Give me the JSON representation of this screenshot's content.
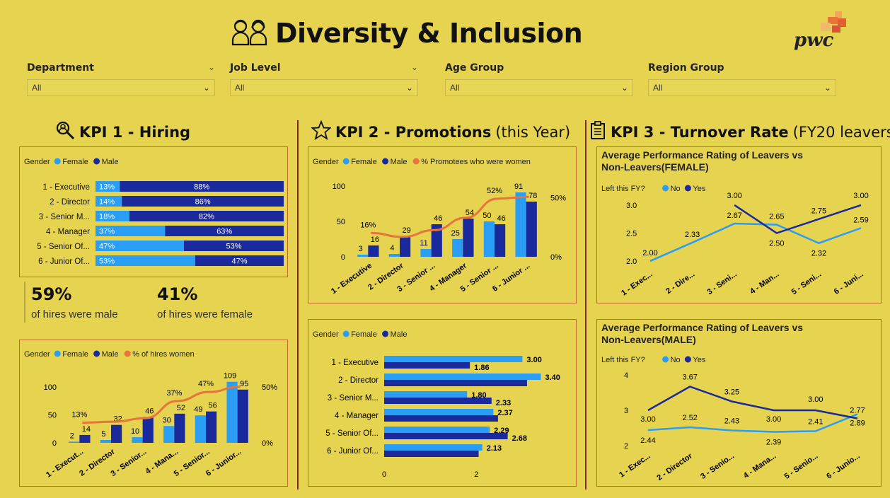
{
  "header": {
    "title": "Diversity & Inclusion",
    "logo_text": "pwc",
    "colors": {
      "background": "#e6d350",
      "female": "#2a9df4",
      "male": "#1a2a9c",
      "line": "#e8743b",
      "border": "#c26a2a"
    }
  },
  "filters": [
    {
      "label": "Department",
      "value": "All"
    },
    {
      "label": "Job Level",
      "value": "All"
    },
    {
      "label": "Age Group",
      "value": "All"
    },
    {
      "label": "Region Group",
      "value": "All"
    }
  ],
  "kpi1": {
    "title": "KPI 1 - Hiring",
    "stat_male_value": "59%",
    "stat_male_label": "of hires were male",
    "stat_female_value": "41%",
    "stat_female_label": "of hires were female"
  },
  "kpi2": {
    "title": "KPI 2 - Promotions",
    "title_suffix": "(this Year)"
  },
  "kpi3": {
    "title": "KPI 3 - Turnover Rate",
    "title_suffix": "(FY20 leavers)"
  },
  "chart_data": [
    {
      "id": "hiring_split",
      "type": "bar",
      "orientation": "horizontal-stacked-100",
      "legend_title": "Gender",
      "legend": [
        "Female",
        "Male"
      ],
      "categories": [
        "1 - Executive",
        "2 - Director",
        "3 - Senior M...",
        "4 - Manager",
        "5 - Senior Of...",
        "6 - Junior Of..."
      ],
      "series": [
        {
          "name": "Female",
          "values": [
            13,
            14,
            18,
            37,
            47,
            53
          ],
          "labels": [
            "13%",
            "14%",
            "18%",
            "37%",
            "47%",
            "53%"
          ]
        },
        {
          "name": "Male",
          "values": [
            88,
            86,
            82,
            63,
            53,
            47
          ],
          "labels": [
            "88%",
            "86%",
            "82%",
            "63%",
            "53%",
            "47%"
          ]
        }
      ]
    },
    {
      "id": "hiring_counts",
      "type": "bar",
      "orientation": "vertical-clustered-with-line",
      "legend_title": "Gender",
      "legend": [
        "Female",
        "Male",
        "% of hires women"
      ],
      "categories": [
        "1 - Execut...",
        "2 - Director",
        "3 - Senior...",
        "4 - Mana...",
        "5 - Senior...",
        "6 - Junior..."
      ],
      "series": [
        {
          "name": "Female",
          "values": [
            2,
            5,
            10,
            30,
            49,
            109
          ]
        },
        {
          "name": "Male",
          "values": [
            14,
            32,
            46,
            52,
            56,
            95
          ]
        }
      ],
      "line": {
        "name": "% of hires women",
        "values": [
          13,
          14,
          18,
          37,
          47,
          53
        ],
        "labels": [
          "13%",
          "",
          "",
          "37%",
          "47%",
          ""
        ]
      },
      "yticks": [
        "0",
        "50",
        "100"
      ],
      "ylim": [
        0,
        120
      ],
      "y2ticks": [
        "0%",
        "50%"
      ],
      "y2lim": [
        0,
        60
      ]
    },
    {
      "id": "promotions_counts",
      "type": "bar",
      "orientation": "vertical-clustered-with-line",
      "legend_title": "Gender",
      "legend": [
        "Female",
        "Male",
        "% Promotees who were women"
      ],
      "categories": [
        "1 - Executive",
        "2 - Director",
        "3 - Senior ...",
        "4 - Manager",
        "5 - Senior ...",
        "6 - Junior ..."
      ],
      "series": [
        {
          "name": "Female",
          "values": [
            3,
            4,
            11,
            25,
            50,
            91
          ]
        },
        {
          "name": "Male",
          "values": [
            16,
            29,
            46,
            54,
            46,
            78
          ]
        }
      ],
      "line": {
        "name": "% Promotees who were women",
        "values": [
          16,
          12,
          19,
          32,
          52,
          54
        ],
        "labels": [
          "16%",
          "",
          "",
          "",
          "52%",
          ""
        ]
      },
      "yticks": [
        "0",
        "50",
        "100"
      ],
      "ylim": [
        0,
        100
      ],
      "y2ticks": [
        "0%",
        "50%"
      ],
      "y2lim": [
        0,
        60
      ]
    },
    {
      "id": "promotions_rating",
      "type": "bar",
      "orientation": "horizontal-clustered",
      "legend_title": "Gender",
      "legend": [
        "Female",
        "Male"
      ],
      "categories": [
        "1 - Executive",
        "2 - Director",
        "3 - Senior M...",
        "4 - Manager",
        "5 - Senior Of...",
        "6 - Junior Of..."
      ],
      "series": [
        {
          "name": "Female",
          "values": [
            3.0,
            3.4,
            1.8,
            2.37,
            2.29,
            2.13
          ],
          "labels": [
            "3.00",
            "3.40",
            "1.80",
            "2.37",
            "2.29",
            "2.13"
          ]
        },
        {
          "name": "Male",
          "values": [
            1.86,
            3.1,
            2.33,
            2.47,
            2.68,
            2.05
          ],
          "labels": [
            "1.86",
            "",
            "2.33",
            "",
            "2.68",
            ""
          ]
        }
      ],
      "xticks": [
        "0",
        "2"
      ],
      "xlim": [
        0,
        3.5
      ]
    },
    {
      "id": "turnover_female",
      "type": "line",
      "title": "Average Performance Rating of Leavers vs Non-Leavers(FEMALE)",
      "legend_title": "Left this FY?",
      "legend": [
        "No",
        "Yes"
      ],
      "categories": [
        "1 - Exec...",
        "2 - Dire...",
        "3 - Seni...",
        "4 - Man...",
        "5 - Seni...",
        "6 - Juni..."
      ],
      "series": [
        {
          "name": "No",
          "values": [
            2.0,
            2.33,
            2.67,
            2.65,
            2.32,
            2.59
          ],
          "labels": [
            "2.00",
            "2.33",
            "2.67",
            "2.65",
            "2.32",
            "2.59"
          ]
        },
        {
          "name": "Yes",
          "values": [
            null,
            null,
            3.0,
            2.5,
            2.75,
            3.0
          ],
          "labels": [
            "",
            "",
            "3.00",
            "2.50",
            "2.75",
            "3.00"
          ]
        }
      ],
      "yticks": [
        "2.0",
        "2.5",
        "3.0"
      ],
      "ylim": [
        1.95,
        3.05
      ]
    },
    {
      "id": "turnover_male",
      "type": "line",
      "title": "Average Performance Rating of Leavers vs Non-Leavers(MALE)",
      "legend_title": "Left this FY?",
      "legend": [
        "No",
        "Yes"
      ],
      "categories": [
        "1 - Exec...",
        "2 - Director",
        "3 - Senio...",
        "4 - Mana...",
        "5 - Senio...",
        "6 - Junio..."
      ],
      "series": [
        {
          "name": "No",
          "values": [
            2.44,
            2.52,
            2.43,
            2.39,
            2.41,
            2.89
          ],
          "labels": [
            "2.44",
            "2.52",
            "2.43",
            "2.39",
            "2.41",
            "2.89"
          ]
        },
        {
          "name": "Yes",
          "values": [
            3.0,
            3.67,
            3.25,
            3.0,
            3.0,
            2.77
          ],
          "labels": [
            "3.00",
            "3.67",
            "3.25",
            "3.00",
            "3.00",
            "2.77"
          ]
        }
      ],
      "yticks": [
        "2",
        "3",
        "4"
      ],
      "ylim": [
        2,
        4
      ]
    }
  ]
}
